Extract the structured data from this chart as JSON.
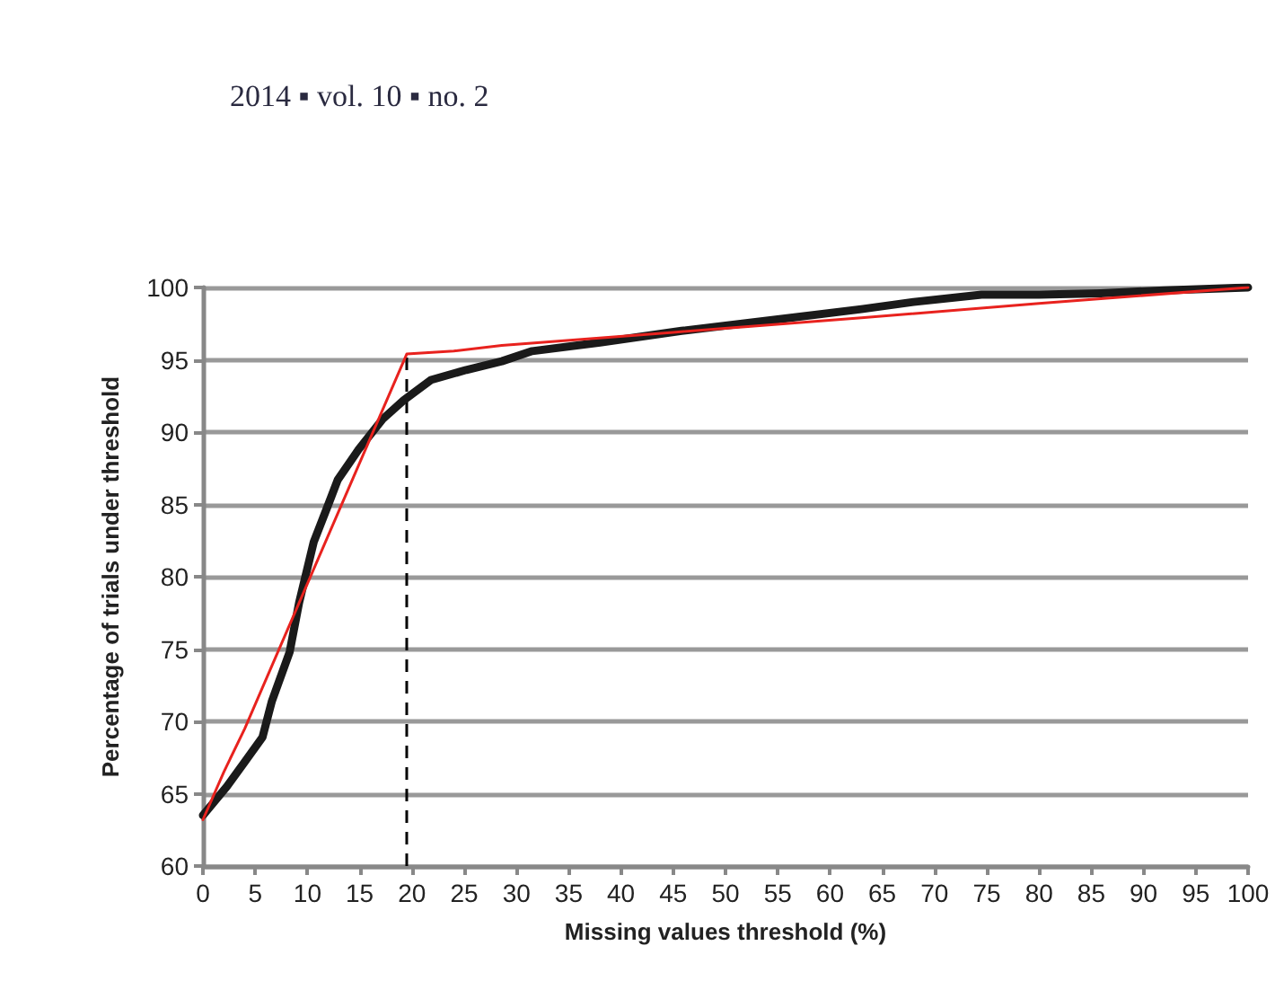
{
  "chart_data": {
    "type": "line",
    "xlabel": "Missing values threshold (%)",
    "ylabel": "Percentage of trials under threshold",
    "annotations": [
      "2014 ▪ vol. 10 ▪ no. 2"
    ],
    "series": [
      {
        "color": "#1a1a1a",
        "x": [
          0,
          2.3,
          4,
          5.7,
          6.6,
          8.3,
          9.2,
          10.6,
          12,
          12.9,
          14.9,
          17.2,
          19.2,
          21.8,
          25.2,
          28.6,
          31.5,
          38,
          45.8,
          55,
          63,
          68,
          74.5,
          80,
          85.9,
          92,
          100
        ],
        "values": [
          63.5,
          65.5,
          67.2,
          68.9,
          71.4,
          74.8,
          78.2,
          82.4,
          85,
          86.7,
          88.8,
          90.9,
          92.2,
          93.6,
          94.3,
          94.9,
          95.6,
          96.2,
          97,
          97.8,
          98.5,
          99,
          99.5,
          99.5,
          99.6,
          99.8,
          100
        ]
      },
      {
        "color": "#e8221e",
        "x": [
          0,
          2,
          4,
          19.5,
          24,
          28.6,
          45,
          63,
          80,
          100
        ],
        "values": [
          63.2,
          66.5,
          69.5,
          95.4,
          95.6,
          96,
          96.9,
          97.9,
          98.9,
          100
        ]
      }
    ],
    "xlim": [
      0,
      100
    ],
    "xticks": [
      0,
      5,
      10,
      15,
      20,
      25,
      30,
      35,
      40,
      45,
      50,
      55,
      60,
      65,
      70,
      75,
      80,
      85,
      90,
      95,
      100
    ],
    "ylim": [
      60,
      100
    ],
    "yticks": [
      60,
      65,
      70,
      75,
      80,
      85,
      90,
      95,
      100
    ],
    "ref_lines": [
      {
        "axis": "x",
        "value": 19.5,
        "color": "#000000",
        "line_style": "dashed"
      }
    ],
    "grid": "y",
    "marker": "none",
    "line_style": "solid"
  }
}
